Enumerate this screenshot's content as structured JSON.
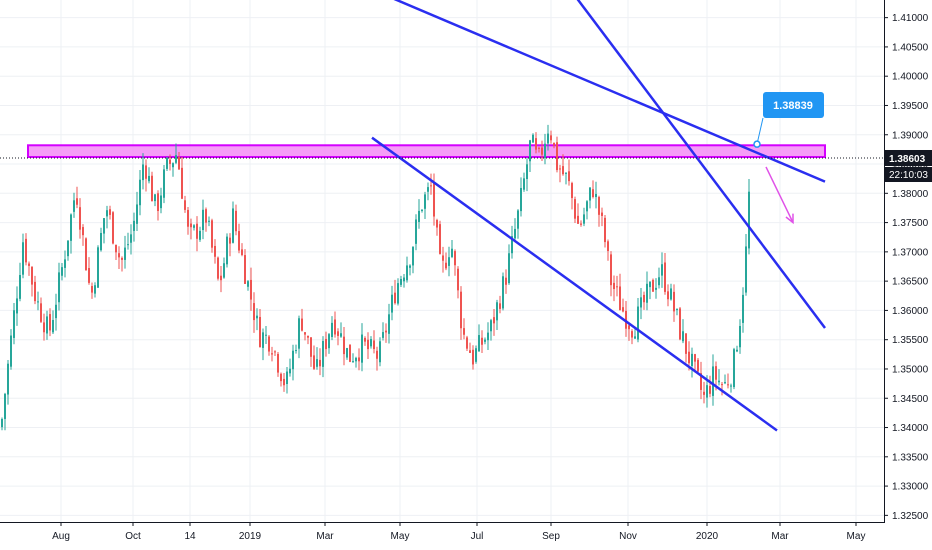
{
  "chart_data": {
    "type": "candlestick",
    "title": "",
    "xlabel": "",
    "ylabel": "",
    "ylim": [
      1.3225,
      1.4125
    ],
    "grid": true,
    "colors": {
      "up": "#26a69a",
      "down": "#ef5350",
      "channel": "#2a2ef0",
      "zone_fill": "#f48cf6",
      "zone_border": "#d400ff",
      "arrow": "#e052e8",
      "badge": "#2196f3",
      "grid": "#eef0f4",
      "axis_text": "#131722"
    },
    "y_ticks": [
      "1.41000",
      "1.40500",
      "1.40000",
      "1.39500",
      "1.39000",
      "1.38500",
      "1.38000",
      "1.37500",
      "1.37000",
      "1.36500",
      "1.36000",
      "1.35500",
      "1.35000",
      "1.34500",
      "1.34000",
      "1.33500",
      "1.33000",
      "1.32500"
    ],
    "y_tick_values": [
      1.41,
      1.405,
      1.4,
      1.395,
      1.39,
      1.385,
      1.38,
      1.375,
      1.37,
      1.365,
      1.36,
      1.355,
      1.35,
      1.345,
      1.34,
      1.335,
      1.33,
      1.325
    ],
    "x_ticks": [
      {
        "label": "Aug",
        "t": 61
      },
      {
        "label": "Oct",
        "t": 133
      },
      {
        "label": "14",
        "t": 190
      },
      {
        "label": "2019",
        "t": 250
      },
      {
        "label": "Mar",
        "t": 325
      },
      {
        "label": "May",
        "t": 400
      },
      {
        "label": "Jul",
        "t": 477
      },
      {
        "label": "Sep",
        "t": 551
      },
      {
        "label": "Nov",
        "t": 628
      },
      {
        "label": "2020",
        "t": 707
      },
      {
        "label": "Mar",
        "t": 780
      },
      {
        "label": "May",
        "t": 856
      }
    ],
    "price_path": [
      [
        0,
        1.34
      ],
      [
        10,
        1.355
      ],
      [
        22,
        1.372
      ],
      [
        35,
        1.362
      ],
      [
        48,
        1.356
      ],
      [
        62,
        1.368
      ],
      [
        75,
        1.381
      ],
      [
        90,
        1.362
      ],
      [
        105,
        1.378
      ],
      [
        120,
        1.368
      ],
      [
        132,
        1.374
      ],
      [
        143,
        1.386
      ],
      [
        155,
        1.377
      ],
      [
        165,
        1.384
      ],
      [
        176,
        1.387
      ],
      [
        188,
        1.372
      ],
      [
        205,
        1.376
      ],
      [
        218,
        1.364
      ],
      [
        232,
        1.376
      ],
      [
        245,
        1.366
      ],
      [
        258,
        1.356
      ],
      [
        270,
        1.355
      ],
      [
        285,
        1.347
      ],
      [
        300,
        1.359
      ],
      [
        315,
        1.349
      ],
      [
        332,
        1.359
      ],
      [
        348,
        1.352
      ],
      [
        362,
        1.354
      ],
      [
        378,
        1.352
      ],
      [
        395,
        1.364
      ],
      [
        410,
        1.37
      ],
      [
        420,
        1.378
      ],
      [
        430,
        1.381
      ],
      [
        440,
        1.366
      ],
      [
        450,
        1.372
      ],
      [
        462,
        1.356
      ],
      [
        472,
        1.352
      ],
      [
        490,
        1.357
      ],
      [
        505,
        1.366
      ],
      [
        518,
        1.377
      ],
      [
        530,
        1.389
      ],
      [
        537,
        1.385
      ],
      [
        548,
        1.392
      ],
      [
        556,
        1.385
      ],
      [
        567,
        1.382
      ],
      [
        578,
        1.374
      ],
      [
        592,
        1.381
      ],
      [
        603,
        1.373
      ],
      [
        610,
        1.365
      ],
      [
        622,
        1.36
      ],
      [
        632,
        1.357
      ],
      [
        645,
        1.362
      ],
      [
        660,
        1.367
      ],
      [
        670,
        1.362
      ],
      [
        680,
        1.356
      ],
      [
        692,
        1.35
      ],
      [
        703,
        1.345
      ],
      [
        713,
        1.349
      ],
      [
        723,
        1.347
      ],
      [
        732,
        1.35
      ],
      [
        740,
        1.36
      ],
      [
        745,
        1.37
      ],
      [
        750,
        1.386
      ]
    ],
    "zone": {
      "y_top": 1.3882,
      "y_bottom": 1.3862,
      "t_start": 28,
      "t_end": 825
    },
    "channel_lines": [
      {
        "name": "",
        "p1": [
          390,
          1.4135
        ],
        "p2": [
          825,
          1.382
        ]
      },
      {
        "name": "",
        "p1": [
          372,
          1.3895
        ],
        "p2": [
          777,
          1.3395
        ]
      },
      {
        "name": "",
        "p1": [
          576,
          1.4135
        ],
        "p2": [
          825,
          1.357
        ]
      }
    ],
    "current_price": {
      "label": "1.38603",
      "value": 1.38603
    },
    "timer": {
      "label": "22:10:03"
    },
    "callout": {
      "label": "1.38839",
      "value": 1.38839,
      "t": 757
    },
    "arrow": {
      "from": [
        766,
        1.3845
      ],
      "to": [
        793,
        1.375
      ]
    }
  }
}
